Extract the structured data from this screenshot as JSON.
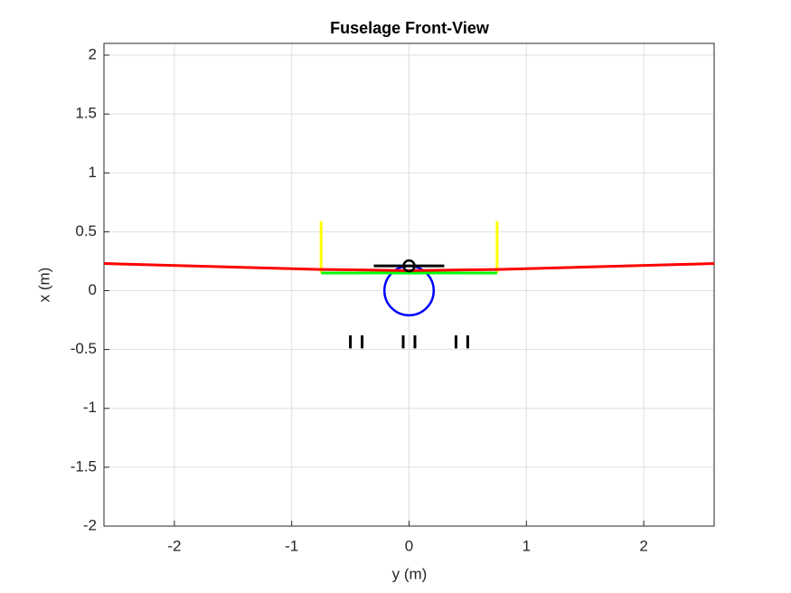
{
  "chart_data": {
    "type": "line",
    "title": "Fuselage Front-View",
    "x_label": "y (m)",
    "y_label": "x (m)",
    "xlim": [
      -2.6,
      2.6
    ],
    "ylim": [
      -2,
      2.1
    ],
    "xticks": [
      -2,
      -1,
      0,
      1,
      2
    ],
    "yticks": [
      -2,
      -1.5,
      -1,
      -0.5,
      0,
      0.5,
      1,
      1.5,
      2
    ],
    "grid": true,
    "circles": [
      {
        "color": "#0000ff",
        "center": [
          0,
          0
        ],
        "radius": 0.21
      }
    ],
    "series": [
      {
        "color": "#ffff00",
        "x": [
          -0.75,
          -0.75,
          null,
          0.75,
          0.75
        ],
        "values": [
          0.15,
          0.59,
          null,
          0.15,
          0.59
        ]
      },
      {
        "color": "#00ff00",
        "x": [
          -0.75,
          0.75
        ],
        "values": [
          0.15,
          0.15
        ]
      },
      {
        "color": "#ff0000",
        "x": [
          -2.6,
          -0.75,
          0,
          0.75,
          2.6
        ],
        "values": [
          0.23,
          0.18,
          0.17,
          0.18,
          0.23
        ]
      },
      {
        "color": "#000000",
        "x": [
          -0.3,
          0.3
        ],
        "values": [
          0.21,
          0.21
        ]
      },
      {
        "color": "#000000",
        "marker": "o",
        "x": [
          0
        ],
        "values": [
          0.21
        ]
      },
      {
        "color": "#000000",
        "x": [
          -0.5,
          -0.5,
          null,
          -0.4,
          -0.4,
          null,
          -0.05,
          -0.05,
          null,
          0.05,
          0.05,
          null,
          0.4,
          0.4,
          null,
          0.5,
          0.5
        ],
        "values": [
          -0.38,
          -0.49,
          null,
          -0.38,
          -0.49,
          null,
          -0.38,
          -0.49,
          null,
          -0.38,
          -0.49,
          null,
          -0.38,
          -0.49,
          null,
          -0.38,
          -0.49
        ]
      }
    ]
  }
}
